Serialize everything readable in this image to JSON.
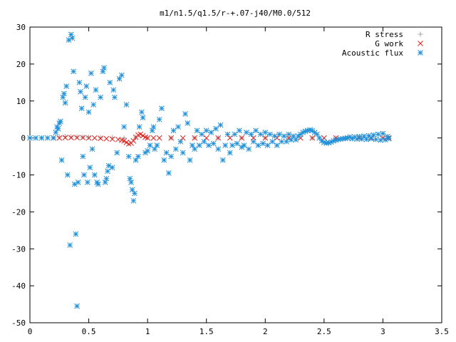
{
  "chart_data": {
    "type": "scatter",
    "title": "m1/n1.5/q1.5/r-+.07-j40/M0.0/512",
    "xlim": [
      0,
      3.5
    ],
    "ylim": [
      -50,
      30
    ],
    "x_ticks": [
      "0",
      "0.5",
      "1",
      "1.5",
      "2",
      "2.5",
      "3",
      "3.5"
    ],
    "y_ticks": [
      "30",
      "20",
      "10",
      "0",
      "-10",
      "-20",
      "-30",
      "-40",
      "-50"
    ],
    "x_tick_values": [
      0,
      0.5,
      1,
      1.5,
      2,
      2.5,
      3,
      3.5
    ],
    "y_tick_values": [
      30,
      20,
      10,
      0,
      -10,
      -20,
      -30,
      -40,
      -50
    ],
    "grid": false,
    "legend_position": "top-right",
    "series": [
      {
        "name": "R stress",
        "marker": "plus",
        "color": "#a0a0a0",
        "points": [
          [
            0.0,
            0
          ],
          [
            0.1,
            0
          ],
          [
            0.2,
            0
          ],
          [
            0.25,
            0.3
          ],
          [
            0.3,
            0.4
          ],
          [
            0.35,
            0.3
          ],
          [
            0.4,
            0.3
          ],
          [
            0.45,
            0.2
          ],
          [
            0.5,
            0.2
          ],
          [
            0.6,
            0.1
          ],
          [
            0.7,
            0.1
          ],
          [
            0.8,
            0
          ],
          [
            0.9,
            0.2
          ],
          [
            1.0,
            0.1
          ],
          [
            1.2,
            0
          ],
          [
            1.4,
            0
          ],
          [
            1.6,
            0
          ],
          [
            1.8,
            0
          ],
          [
            2.0,
            0
          ],
          [
            2.2,
            0
          ],
          [
            2.4,
            0
          ],
          [
            2.6,
            0
          ],
          [
            2.8,
            0
          ],
          [
            3.0,
            0
          ],
          [
            3.05,
            0
          ]
        ]
      },
      {
        "name": "G work",
        "marker": "cross",
        "color": "#e0201c",
        "points": [
          [
            0.2,
            0
          ],
          [
            0.25,
            0
          ],
          [
            0.3,
            0.1
          ],
          [
            0.35,
            0.1
          ],
          [
            0.4,
            0.1
          ],
          [
            0.45,
            0.1
          ],
          [
            0.5,
            0
          ],
          [
            0.55,
            0
          ],
          [
            0.6,
            -0.1
          ],
          [
            0.65,
            -0.2
          ],
          [
            0.7,
            -0.3
          ],
          [
            0.75,
            -0.4
          ],
          [
            0.78,
            -0.6
          ],
          [
            0.8,
            -0.8
          ],
          [
            0.82,
            -1.2
          ],
          [
            0.84,
            -1.6
          ],
          [
            0.86,
            -1.4
          ],
          [
            0.88,
            -0.8
          ],
          [
            0.9,
            0.2
          ],
          [
            0.92,
            0.8
          ],
          [
            0.94,
            1.0
          ],
          [
            0.96,
            0.6
          ],
          [
            0.98,
            0.2
          ],
          [
            1.0,
            0
          ],
          [
            1.05,
            0
          ],
          [
            1.1,
            0
          ],
          [
            1.2,
            0
          ],
          [
            1.3,
            0
          ],
          [
            1.4,
            0
          ],
          [
            1.5,
            0
          ],
          [
            1.6,
            0
          ],
          [
            1.7,
            0
          ],
          [
            1.8,
            0
          ],
          [
            1.9,
            0
          ],
          [
            2.0,
            0
          ],
          [
            2.1,
            0
          ],
          [
            2.2,
            0
          ],
          [
            2.3,
            0
          ],
          [
            2.4,
            0
          ],
          [
            2.5,
            0
          ],
          [
            2.6,
            0
          ],
          [
            2.7,
            0
          ],
          [
            2.8,
            0
          ],
          [
            2.9,
            0
          ],
          [
            3.0,
            0
          ],
          [
            3.05,
            0
          ]
        ]
      },
      {
        "name": "Acoustic flux",
        "marker": "star",
        "color": "#1f8fd8",
        "points": [
          [
            0.0,
            0
          ],
          [
            0.05,
            0
          ],
          [
            0.1,
            0
          ],
          [
            0.15,
            0
          ],
          [
            0.2,
            0
          ],
          [
            0.22,
            1.5
          ],
          [
            0.23,
            3
          ],
          [
            0.24,
            2.5
          ],
          [
            0.25,
            4
          ],
          [
            0.26,
            4.5
          ],
          [
            0.27,
            -6
          ],
          [
            0.28,
            11
          ],
          [
            0.29,
            12
          ],
          [
            0.3,
            9.5
          ],
          [
            0.31,
            14
          ],
          [
            0.32,
            -10
          ],
          [
            0.33,
            26.5
          ],
          [
            0.34,
            -29
          ],
          [
            0.35,
            28
          ],
          [
            0.36,
            27
          ],
          [
            0.37,
            18
          ],
          [
            0.38,
            -12.5
          ],
          [
            0.39,
            -26
          ],
          [
            0.4,
            -45.5
          ],
          [
            0.41,
            -12
          ],
          [
            0.42,
            15
          ],
          [
            0.43,
            12.5
          ],
          [
            0.44,
            8
          ],
          [
            0.45,
            -5
          ],
          [
            0.46,
            -10
          ],
          [
            0.47,
            11
          ],
          [
            0.48,
            14
          ],
          [
            0.49,
            -12
          ],
          [
            0.5,
            7
          ],
          [
            0.51,
            -8
          ],
          [
            0.52,
            17.5
          ],
          [
            0.53,
            -3
          ],
          [
            0.54,
            9
          ],
          [
            0.55,
            -10
          ],
          [
            0.56,
            13
          ],
          [
            0.57,
            -12
          ],
          [
            0.58,
            -12.5
          ],
          [
            0.6,
            11
          ],
          [
            0.62,
            18
          ],
          [
            0.63,
            19
          ],
          [
            0.64,
            -12
          ],
          [
            0.65,
            -11
          ],
          [
            0.66,
            -9
          ],
          [
            0.67,
            -7.5
          ],
          [
            0.68,
            15
          ],
          [
            0.7,
            -8
          ],
          [
            0.71,
            13
          ],
          [
            0.72,
            11
          ],
          [
            0.74,
            -4
          ],
          [
            0.76,
            16
          ],
          [
            0.78,
            17
          ],
          [
            0.8,
            3
          ],
          [
            0.82,
            9
          ],
          [
            0.84,
            -5
          ],
          [
            0.85,
            -11
          ],
          [
            0.86,
            -12
          ],
          [
            0.87,
            -14
          ],
          [
            0.88,
            -17
          ],
          [
            0.89,
            -15
          ],
          [
            0.9,
            -6
          ],
          [
            0.92,
            -5
          ],
          [
            0.93,
            3
          ],
          [
            0.95,
            7
          ],
          [
            0.96,
            5.5
          ],
          [
            0.98,
            -4
          ],
          [
            1.0,
            -3.5
          ],
          [
            1.02,
            -2
          ],
          [
            1.04,
            2
          ],
          [
            1.05,
            3
          ],
          [
            1.06,
            -3
          ],
          [
            1.08,
            -2
          ],
          [
            1.1,
            5
          ],
          [
            1.12,
            8
          ],
          [
            1.14,
            -6
          ],
          [
            1.16,
            -4
          ],
          [
            1.18,
            -9.5
          ],
          [
            1.2,
            -5
          ],
          [
            1.22,
            2
          ],
          [
            1.24,
            -3
          ],
          [
            1.26,
            3
          ],
          [
            1.28,
            -1
          ],
          [
            1.3,
            -4
          ],
          [
            1.32,
            6.5
          ],
          [
            1.34,
            4
          ],
          [
            1.36,
            -6
          ],
          [
            1.38,
            -2
          ],
          [
            1.4,
            -3
          ],
          [
            1.42,
            2
          ],
          [
            1.44,
            -2
          ],
          [
            1.46,
            1
          ],
          [
            1.48,
            -1
          ],
          [
            1.5,
            2
          ],
          [
            1.52,
            -2
          ],
          [
            1.54,
            1.5
          ],
          [
            1.56,
            -1.5
          ],
          [
            1.58,
            2.5
          ],
          [
            1.6,
            -3
          ],
          [
            1.62,
            3.5
          ],
          [
            1.64,
            -6
          ],
          [
            1.66,
            -2
          ],
          [
            1.68,
            1
          ],
          [
            1.7,
            -4
          ],
          [
            1.72,
            -2
          ],
          [
            1.74,
            1
          ],
          [
            1.76,
            -1.5
          ],
          [
            1.78,
            2
          ],
          [
            1.8,
            -2.5
          ],
          [
            1.82,
            -2
          ],
          [
            1.84,
            1.5
          ],
          [
            1.86,
            -3
          ],
          [
            1.88,
            1
          ],
          [
            1.9,
            -1
          ],
          [
            1.92,
            2
          ],
          [
            1.94,
            -2
          ],
          [
            1.96,
            1
          ],
          [
            1.98,
            -1.5
          ],
          [
            2.0,
            1.5
          ],
          [
            2.02,
            -2
          ],
          [
            2.04,
            1
          ],
          [
            2.06,
            -1
          ],
          [
            2.08,
            0.5
          ],
          [
            2.1,
            -2
          ],
          [
            2.12,
            1
          ],
          [
            2.14,
            -1
          ],
          [
            2.16,
            0.5
          ],
          [
            2.18,
            -1
          ],
          [
            2.2,
            1
          ],
          [
            2.22,
            -0.5
          ],
          [
            2.24,
            0.5
          ],
          [
            2.26,
            -0.5
          ],
          [
            2.28,
            0.5
          ],
          [
            2.3,
            1
          ],
          [
            2.32,
            1.5
          ],
          [
            2.34,
            1.8
          ],
          [
            2.36,
            2
          ],
          [
            2.38,
            2.2
          ],
          [
            2.4,
            2
          ],
          [
            2.42,
            1.5
          ],
          [
            2.44,
            1
          ],
          [
            2.46,
            0
          ],
          [
            2.48,
            -0.8
          ],
          [
            2.5,
            -1.2
          ],
          [
            2.52,
            -1.4
          ],
          [
            2.54,
            -1.3
          ],
          [
            2.56,
            -1.1
          ],
          [
            2.58,
            -0.8
          ],
          [
            2.6,
            -0.6
          ],
          [
            2.62,
            -0.4
          ],
          [
            2.64,
            -0.3
          ],
          [
            2.66,
            -0.2
          ],
          [
            2.68,
            -0.1
          ],
          [
            2.7,
            0
          ],
          [
            2.72,
            0.3
          ],
          [
            2.74,
            -0.2
          ],
          [
            2.76,
            0.3
          ],
          [
            2.78,
            -0.3
          ],
          [
            2.8,
            0.4
          ],
          [
            2.82,
            -0.3
          ],
          [
            2.84,
            0.5
          ],
          [
            2.86,
            -0.4
          ],
          [
            2.88,
            0.6
          ],
          [
            2.9,
            -0.2
          ],
          [
            2.92,
            0.8
          ],
          [
            2.94,
            -0.4
          ],
          [
            2.96,
            1
          ],
          [
            2.98,
            -0.6
          ],
          [
            3.0,
            1.2
          ],
          [
            3.02,
            -0.5
          ],
          [
            3.04,
            0.4
          ],
          [
            3.05,
            -0.2
          ]
        ]
      }
    ]
  }
}
